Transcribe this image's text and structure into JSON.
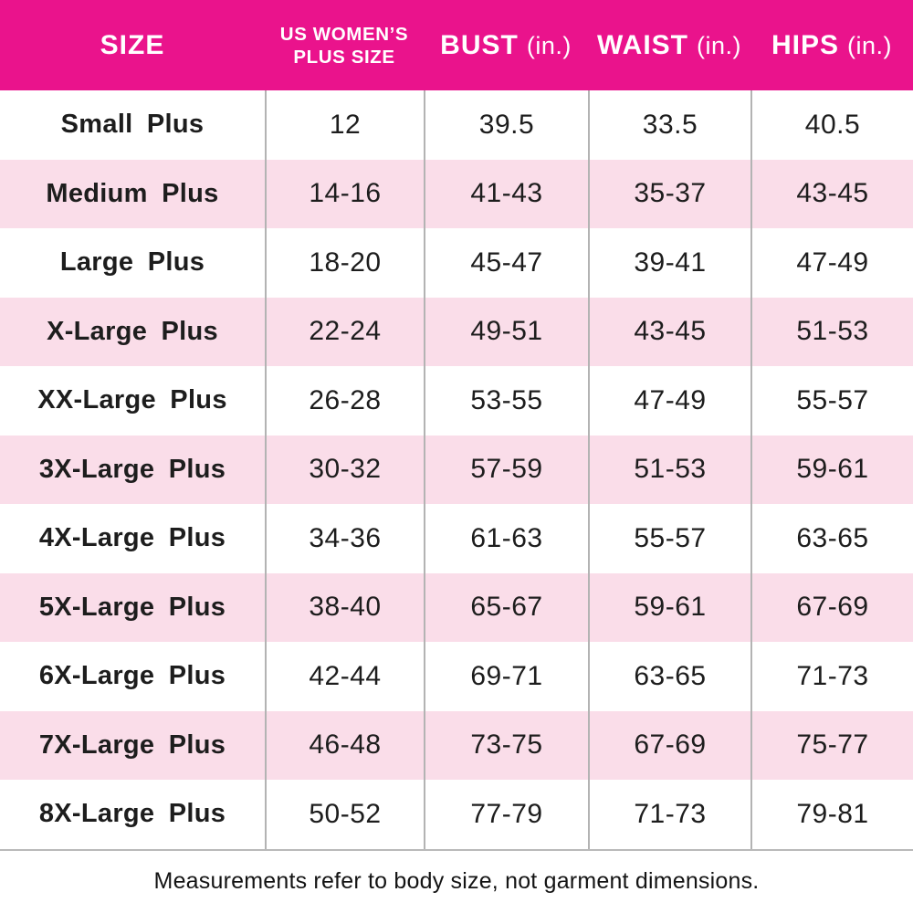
{
  "colors": {
    "header_bg": "#EA138C",
    "header_text": "#FFFFFF",
    "row_alt_bg": "#FADDE9",
    "row_bg": "#FFFFFF",
    "grid_line": "#B3B3B3",
    "body_text": "#1D1D1D"
  },
  "header": {
    "size_label": "SIZE",
    "plus_size_line1": "US WOMEN’S",
    "plus_size_line2": "PLUS SIZE",
    "bust_label": "BUST",
    "bust_unit": "(in.)",
    "waist_label": "WAIST",
    "waist_unit": "(in.)",
    "hips_label": "HIPS",
    "hips_unit": "(in.)"
  },
  "table": {
    "rows": [
      {
        "size": "Small Plus",
        "plus": "12",
        "bust": "39.5",
        "waist": "33.5",
        "hips": "40.5"
      },
      {
        "size": "Medium Plus",
        "plus": "14-16",
        "bust": "41-43",
        "waist": "35-37",
        "hips": "43-45"
      },
      {
        "size": "Large Plus",
        "plus": "18-20",
        "bust": "45-47",
        "waist": "39-41",
        "hips": "47-49"
      },
      {
        "size": "X-Large Plus",
        "plus": "22-24",
        "bust": "49-51",
        "waist": "43-45",
        "hips": "51-53"
      },
      {
        "size": "XX-Large Plus",
        "plus": "26-28",
        "bust": "53-55",
        "waist": "47-49",
        "hips": "55-57"
      },
      {
        "size": "3X-Large Plus",
        "plus": "30-32",
        "bust": "57-59",
        "waist": "51-53",
        "hips": "59-61"
      },
      {
        "size": "4X-Large Plus",
        "plus": "34-36",
        "bust": "61-63",
        "waist": "55-57",
        "hips": "63-65"
      },
      {
        "size": "5X-Large Plus",
        "plus": "38-40",
        "bust": "65-67",
        "waist": "59-61",
        "hips": "67-69"
      },
      {
        "size": "6X-Large Plus",
        "plus": "42-44",
        "bust": "69-71",
        "waist": "63-65",
        "hips": "71-73"
      },
      {
        "size": "7X-Large Plus",
        "plus": "46-48",
        "bust": "73-75",
        "waist": "67-69",
        "hips": "75-77"
      },
      {
        "size": "8X-Large Plus",
        "plus": "50-52",
        "bust": "77-79",
        "waist": "71-73",
        "hips": "79-81"
      }
    ]
  },
  "footer": {
    "note": "Measurements refer to body size, not garment dimensions."
  },
  "chart_data": {
    "type": "table",
    "title": "US Women's Plus Size Chart",
    "columns": [
      "SIZE",
      "US WOMEN'S PLUS SIZE",
      "BUST (in.)",
      "WAIST (in.)",
      "HIPS (in.)"
    ],
    "rows": [
      [
        "Small Plus",
        "12",
        "39.5",
        "33.5",
        "40.5"
      ],
      [
        "Medium Plus",
        "14-16",
        "41-43",
        "35-37",
        "43-45"
      ],
      [
        "Large Plus",
        "18-20",
        "45-47",
        "39-41",
        "47-49"
      ],
      [
        "X-Large Plus",
        "22-24",
        "49-51",
        "43-45",
        "51-53"
      ],
      [
        "XX-Large Plus",
        "26-28",
        "53-55",
        "47-49",
        "55-57"
      ],
      [
        "3X-Large Plus",
        "30-32",
        "57-59",
        "51-53",
        "59-61"
      ],
      [
        "4X-Large Plus",
        "34-36",
        "61-63",
        "55-57",
        "63-65"
      ],
      [
        "5X-Large Plus",
        "38-40",
        "65-67",
        "59-61",
        "67-69"
      ],
      [
        "6X-Large Plus",
        "42-44",
        "69-71",
        "63-65",
        "71-73"
      ],
      [
        "7X-Large Plus",
        "46-48",
        "73-75",
        "67-69",
        "75-77"
      ],
      [
        "8X-Large Plus",
        "50-52",
        "77-79",
        "71-73",
        "79-81"
      ]
    ],
    "footnote": "Measurements refer to body size, not garment dimensions.",
    "layout": "header row magenta with white text; body rows alternate white and light pink; thin gray column separators"
  }
}
